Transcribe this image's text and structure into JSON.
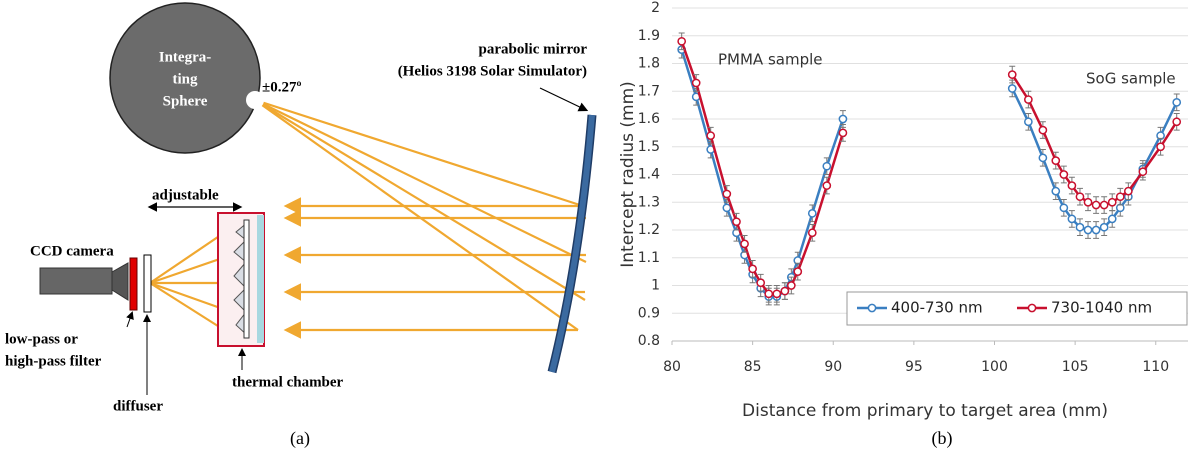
{
  "diagram": {
    "sphere_label": [
      "Integra-",
      "ting",
      "Sphere"
    ],
    "angle": "±0.27º",
    "mirror_label": [
      "parabolic mirror",
      "(Helios 3198 Solar Simulator)"
    ],
    "adjustable": "adjustable",
    "camera": "CCD camera",
    "filter_label": [
      "low-pass or",
      "high-pass filter"
    ],
    "diffuser": "diffuser",
    "chamber": "thermal chamber",
    "caption": "(a)"
  },
  "chart_data": {
    "type": "line",
    "x_label": "Distance from primary to target area (mm)",
    "y_label": "Intercept radius (mm)",
    "caption": "(b)",
    "annotations": [
      "PMMA sample",
      "SoG sample"
    ],
    "xlim": [
      80,
      112
    ],
    "xticks": [
      80,
      85,
      90,
      95,
      100,
      105,
      110
    ],
    "ylim": [
      0.8,
      2
    ],
    "yticks": [
      {
        "value": 0.8,
        "label": "0.8"
      },
      {
        "value": 0.9,
        "label": "0.9"
      },
      1,
      {
        "value": 1.1,
        "label": "1.1"
      },
      {
        "value": 1.2,
        "label": "1.2"
      },
      {
        "value": 1.3,
        "label": "1.3"
      },
      {
        "value": 1.4,
        "label": "1.4"
      },
      {
        "value": 1.5,
        "label": "1.5"
      },
      {
        "value": 1.6,
        "label": "1.6"
      },
      {
        "value": 1.7,
        "label": "1.7"
      },
      {
        "value": 1.8,
        "label": "1.8"
      },
      {
        "value": 1.9,
        "label": "1.9"
      },
      2
    ],
    "grid": true,
    "legend": "bottom-right",
    "series": [
      {
        "name": "400-730 nm",
        "color": "#3a7fc1",
        "error": 0.03,
        "x": [
          80.6,
          81.5,
          82.4,
          83.4,
          84.0,
          84.5,
          85.0,
          85.5,
          86.0,
          86.5,
          87.0,
          87.4,
          87.8,
          88.7,
          89.6,
          90.6,
          null,
          101.1,
          102.1,
          103.0,
          103.8,
          104.3,
          104.8,
          105.3,
          105.8,
          106.3,
          106.8,
          107.3,
          107.8,
          108.3,
          109.2,
          110.3,
          111.3
        ],
        "values": [
          1.85,
          1.68,
          1.49,
          1.28,
          1.19,
          1.11,
          1.04,
          0.99,
          0.96,
          0.96,
          0.98,
          1.03,
          1.09,
          1.26,
          1.43,
          1.6,
          null,
          1.71,
          1.59,
          1.46,
          1.34,
          1.28,
          1.24,
          1.21,
          1.2,
          1.2,
          1.21,
          1.24,
          1.28,
          1.32,
          1.42,
          1.54,
          1.66
        ]
      },
      {
        "name": "730-1040 nm",
        "color": "#c8102e",
        "error": 0.03,
        "x": [
          80.6,
          81.5,
          82.4,
          83.4,
          84.0,
          84.5,
          85.0,
          85.5,
          86.0,
          86.5,
          87.0,
          87.4,
          87.8,
          88.7,
          89.6,
          90.6,
          null,
          101.1,
          102.1,
          103.0,
          103.8,
          104.3,
          104.8,
          105.3,
          105.8,
          106.3,
          106.8,
          107.3,
          107.8,
          108.3,
          109.2,
          110.3,
          111.3
        ],
        "values": [
          1.88,
          1.73,
          1.54,
          1.33,
          1.23,
          1.15,
          1.06,
          1.01,
          0.97,
          0.97,
          0.98,
          1.0,
          1.05,
          1.19,
          1.36,
          1.55,
          null,
          1.76,
          1.67,
          1.56,
          1.45,
          1.4,
          1.36,
          1.32,
          1.3,
          1.29,
          1.29,
          1.3,
          1.32,
          1.34,
          1.41,
          1.5,
          1.59
        ]
      }
    ]
  }
}
